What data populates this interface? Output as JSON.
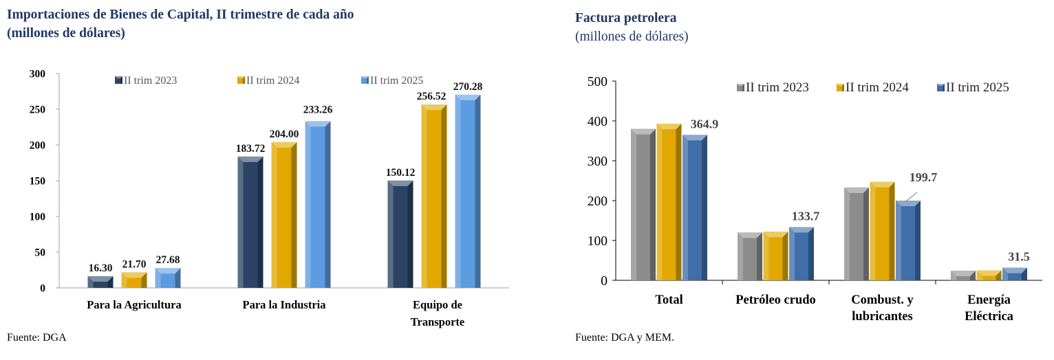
{
  "left": {
    "title_line1": "Importaciones de Bienes de Capital,  II trimestre de cada año",
    "title_line2": "(millones de dólares)",
    "source": "Fuente: DGA"
  },
  "right": {
    "title_line1": "Factura petrolera",
    "title_line2": "(millones de dólares)",
    "source": "Fuente: DGA y MEM."
  },
  "colors": {
    "s2023_left": "#2b4466",
    "s2024": "#e0a800",
    "s2025_left": "#5b9be0",
    "s2023_right": "#8c8c8c",
    "s2025_right": "#3f6ea8",
    "title": "#1f3864"
  },
  "chart_data": [
    {
      "type": "bar",
      "title": "Importaciones de Bienes de Capital,  II trimestre de cada año",
      "subtitle": "(millones de dólares)",
      "categories": [
        "Para la Agricultura",
        "Para la Industria",
        "Equipo de Transporte"
      ],
      "category_lines": [
        [
          "Para la Agricultura"
        ],
        [
          "Para la Industria"
        ],
        [
          "Equipo de",
          "Transporte"
        ]
      ],
      "series": [
        {
          "name": "II trim 2023",
          "values": [
            16.3,
            183.72,
            150.12
          ],
          "labels": [
            "16.30",
            "183.72",
            "150.12"
          ]
        },
        {
          "name": "II trim 2024",
          "values": [
            21.7,
            204.0,
            256.52
          ],
          "labels": [
            "21.70",
            "204.00",
            "256.52"
          ]
        },
        {
          "name": "II trim 2025",
          "values": [
            27.68,
            233.26,
            270.28
          ],
          "labels": [
            "27.68",
            "233.26",
            "270.28"
          ]
        }
      ],
      "ylim": [
        0,
        300
      ],
      "yticks": [
        "0",
        "50",
        "100",
        "150",
        "200",
        "250",
        "300"
      ],
      "legend": "top",
      "grid": false
    },
    {
      "type": "bar",
      "title": "Factura petrolera",
      "subtitle": "(millones de dólares)",
      "categories": [
        "Total",
        "Petróleo crudo",
        "Combust. y lubricantes",
        "Energía Eléctrica"
      ],
      "category_lines": [
        [
          "Total"
        ],
        [
          "Petróleo crudo"
        ],
        [
          "Combust. y",
          "lubricantes"
        ],
        [
          "Energía",
          "Eléctrica"
        ]
      ],
      "series": [
        {
          "name": "II trim 2023",
          "values": [
            380,
            120,
            233,
            24
          ],
          "labels": [
            "",
            "",
            "",
            ""
          ]
        },
        {
          "name": "II trim 2024",
          "values": [
            393,
            122,
            247,
            25
          ],
          "labels": [
            "",
            "",
            "",
            ""
          ]
        },
        {
          "name": "II trim 2025",
          "values": [
            364.9,
            133.7,
            199.7,
            31.5
          ],
          "labels": [
            "364.9",
            "133.7",
            "199.7",
            "31.5"
          ]
        }
      ],
      "ylim": [
        0,
        500
      ],
      "yticks": [
        "0",
        "100",
        "200",
        "300",
        "400",
        "500"
      ],
      "legend": "top",
      "grid": false
    }
  ]
}
